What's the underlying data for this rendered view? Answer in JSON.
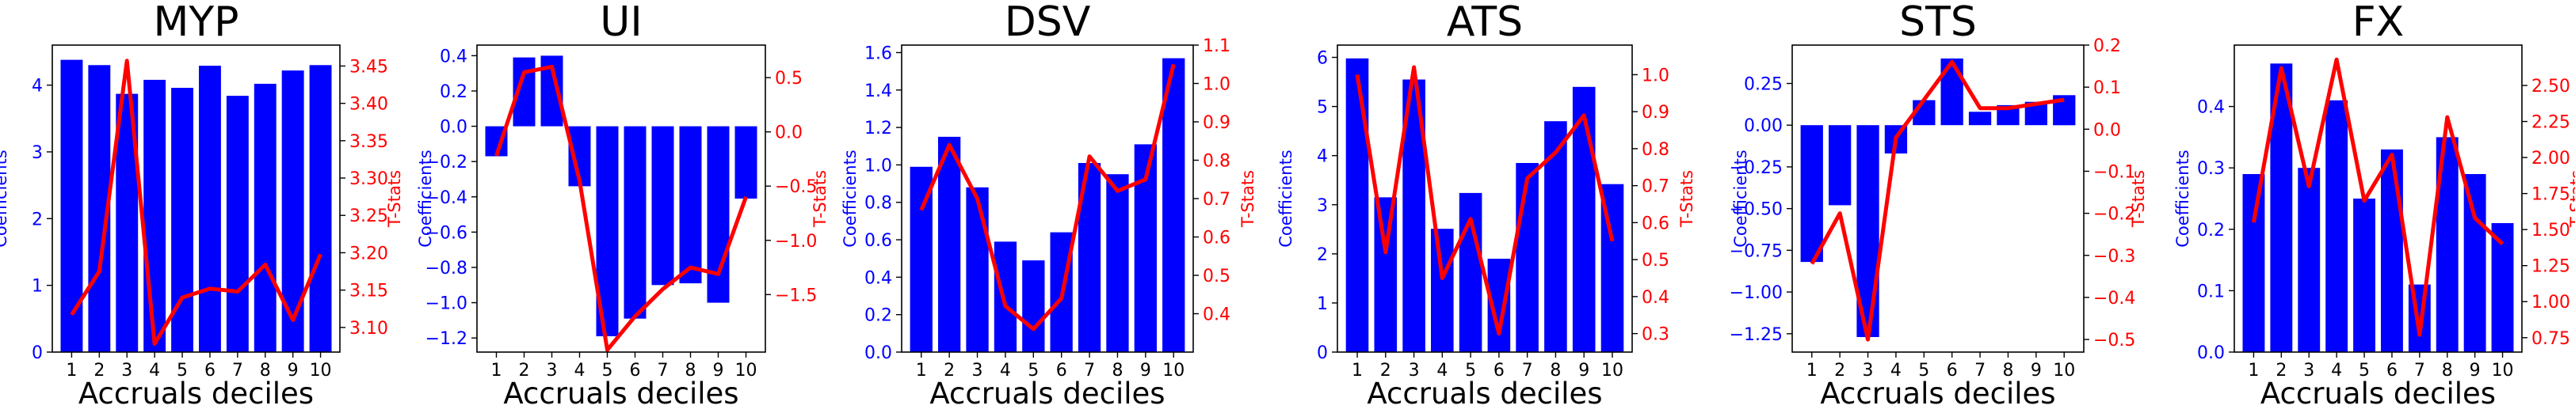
{
  "figure": {
    "background": "#ffffff"
  },
  "style": {
    "bar_color": "#0000ff",
    "line_color": "#ff0000",
    "axis_color": "#000000"
  },
  "chart_data": [
    {
      "type": "bar",
      "title": "MYP",
      "xlabel": "Accruals deciles",
      "ylabel": "Coefficients",
      "y2label": "T-Stats",
      "categories": [
        "1",
        "2",
        "3",
        "4",
        "5",
        "6",
        "7",
        "8",
        "9",
        "10"
      ],
      "ylim": [
        0,
        4.6
      ],
      "y2lim": [
        3.067,
        3.478
      ],
      "yticks": [
        0,
        1,
        2,
        3,
        4
      ],
      "yticklabels": [
        "0",
        "1",
        "2",
        "3",
        "4"
      ],
      "y2ticks": [
        3.1,
        3.15,
        3.2,
        3.25,
        3.3,
        3.35,
        3.4,
        3.45
      ],
      "y2ticklabels": [
        "3.10",
        "3.15",
        "3.20",
        "3.25",
        "3.30",
        "3.35",
        "3.40",
        "3.45"
      ],
      "series": [
        {
          "kind": "bar",
          "axis": "left",
          "values": [
            4.38,
            4.3,
            3.87,
            4.08,
            3.96,
            4.29,
            3.84,
            4.02,
            4.22,
            4.3
          ]
        },
        {
          "kind": "line",
          "axis": "right",
          "values": [
            3.117,
            3.175,
            3.457,
            3.078,
            3.14,
            3.152,
            3.148,
            3.184,
            3.11,
            3.198
          ]
        }
      ]
    },
    {
      "type": "bar",
      "title": "UI",
      "xlabel": "Accruals deciles",
      "ylabel": "Coefficients",
      "y2label": "T-Stats",
      "categories": [
        "1",
        "2",
        "3",
        "4",
        "5",
        "6",
        "7",
        "8",
        "9",
        "10"
      ],
      "ylim": [
        -1.28,
        0.46
      ],
      "y2lim": [
        -2.03,
        0.8
      ],
      "yticks": [
        0.4,
        0.2,
        0.0,
        -0.2,
        -0.4,
        -0.6,
        -0.8,
        -1.0,
        -1.2
      ],
      "yticklabels": [
        "0.4",
        "0.2",
        "0.0",
        "−0.2",
        "−0.4",
        "−0.6",
        "−0.8",
        "−1.0",
        "−1.2"
      ],
      "y2ticks": [
        0.5,
        0.0,
        -0.5,
        -1.0,
        -1.5
      ],
      "y2ticklabels": [
        "0.5",
        "0.0",
        "−0.5",
        "−1.0",
        "−1.5"
      ],
      "series": [
        {
          "kind": "bar",
          "axis": "left",
          "values": [
            -0.17,
            0.39,
            0.4,
            -0.34,
            -1.19,
            -1.09,
            -0.9,
            -0.89,
            -1.0,
            -0.41
          ]
        },
        {
          "kind": "line",
          "axis": "right",
          "values": [
            -0.22,
            0.55,
            0.6,
            -0.45,
            -2.01,
            -1.7,
            -1.45,
            -1.25,
            -1.31,
            -0.6
          ]
        }
      ]
    },
    {
      "type": "bar",
      "title": "DSV",
      "xlabel": "Accruals deciles",
      "ylabel": "Coefficients",
      "y2label": "T-Stats",
      "categories": [
        "1",
        "2",
        "3",
        "4",
        "5",
        "6",
        "7",
        "8",
        "9",
        "10"
      ],
      "ylim": [
        0,
        1.64
      ],
      "y2lim": [
        0.3,
        1.1
      ],
      "yticks": [
        0.0,
        0.2,
        0.4,
        0.6,
        0.8,
        1.0,
        1.2,
        1.4,
        1.6
      ],
      "yticklabels": [
        "0.0",
        "0.2",
        "0.4",
        "0.6",
        "0.8",
        "1.0",
        "1.2",
        "1.4",
        "1.6"
      ],
      "y2ticks": [
        0.4,
        0.5,
        0.6,
        0.7,
        0.8,
        0.9,
        1.0,
        1.1
      ],
      "y2ticklabels": [
        "0.4",
        "0.5",
        "0.6",
        "0.7",
        "0.8",
        "0.9",
        "1.0",
        "1.1"
      ],
      "series": [
        {
          "kind": "bar",
          "axis": "left",
          "values": [
            0.99,
            1.15,
            0.88,
            0.59,
            0.49,
            0.64,
            1.01,
            0.95,
            1.11,
            1.57
          ]
        },
        {
          "kind": "line",
          "axis": "right",
          "values": [
            0.67,
            0.84,
            0.7,
            0.42,
            0.36,
            0.44,
            0.81,
            0.72,
            0.75,
            1.05
          ]
        }
      ]
    },
    {
      "type": "bar",
      "title": "ATS",
      "xlabel": "Accruals deciles",
      "ylabel": "Coefficients",
      "y2label": "T-Stats",
      "categories": [
        "1",
        "2",
        "3",
        "4",
        "5",
        "6",
        "7",
        "8",
        "9",
        "10"
      ],
      "ylim": [
        0,
        6.25
      ],
      "y2lim": [
        0.25,
        1.08
      ],
      "yticks": [
        0,
        1,
        2,
        3,
        4,
        5,
        6
      ],
      "yticklabels": [
        "0",
        "1",
        "2",
        "3",
        "4",
        "5",
        "6"
      ],
      "y2ticks": [
        0.3,
        0.4,
        0.5,
        0.6,
        0.7,
        0.8,
        0.9,
        1.0
      ],
      "y2ticklabels": [
        "0.3",
        "0.4",
        "0.5",
        "0.6",
        "0.7",
        "0.8",
        "0.9",
        "1.0"
      ],
      "series": [
        {
          "kind": "bar",
          "axis": "left",
          "values": [
            5.98,
            3.15,
            5.55,
            2.51,
            3.24,
            1.9,
            3.85,
            4.7,
            5.4,
            3.42
          ]
        },
        {
          "kind": "line",
          "axis": "right",
          "values": [
            1.0,
            0.52,
            1.02,
            0.45,
            0.61,
            0.3,
            0.72,
            0.79,
            0.89,
            0.55
          ]
        }
      ]
    },
    {
      "type": "bar",
      "title": "STS",
      "xlabel": "Accruals deciles",
      "ylabel": "Coefficients",
      "y2label": "T-Stats",
      "categories": [
        "1",
        "2",
        "3",
        "4",
        "5",
        "6",
        "7",
        "8",
        "9",
        "10"
      ],
      "ylim": [
        -1.36,
        0.48
      ],
      "y2lim": [
        -0.53,
        0.2
      ],
      "yticks": [
        0.25,
        0.0,
        -0.25,
        -0.5,
        -0.75,
        -1.0,
        -1.25
      ],
      "yticklabels": [
        "0.25",
        "0.00",
        "−0.25",
        "−0.50",
        "−0.75",
        "−1.00",
        "−1.25"
      ],
      "y2ticks": [
        0.2,
        0.1,
        0.0,
        -0.1,
        -0.2,
        -0.3,
        -0.4,
        -0.5
      ],
      "y2ticklabels": [
        "0.2",
        "0.1",
        "0.0",
        "−0.1",
        "−0.2",
        "−0.3",
        "−0.4",
        "−0.5"
      ],
      "series": [
        {
          "kind": "bar",
          "axis": "left",
          "values": [
            -0.82,
            -0.48,
            -1.27,
            -0.17,
            0.15,
            0.4,
            0.08,
            0.12,
            0.14,
            0.18
          ]
        },
        {
          "kind": "line",
          "axis": "right",
          "values": [
            -0.32,
            -0.2,
            -0.5,
            -0.02,
            0.07,
            0.16,
            0.05,
            0.05,
            0.06,
            0.07
          ]
        }
      ]
    },
    {
      "type": "bar",
      "title": "FX",
      "xlabel": "Accruals deciles",
      "ylabel": "Coefficients",
      "y2label": "T-Stats",
      "categories": [
        "1",
        "2",
        "3",
        "4",
        "5",
        "6",
        "7",
        "8",
        "9",
        "10"
      ],
      "ylim": [
        0,
        0.5
      ],
      "y2lim": [
        0.65,
        2.78
      ],
      "yticks": [
        0.0,
        0.1,
        0.2,
        0.3,
        0.4
      ],
      "yticklabels": [
        "0.0",
        "0.1",
        "0.2",
        "0.3",
        "0.4"
      ],
      "y2ticks": [
        0.75,
        1.0,
        1.25,
        1.5,
        1.75,
        2.0,
        2.25,
        2.5
      ],
      "y2ticklabels": [
        "0.75",
        "1.00",
        "1.25",
        "1.50",
        "1.75",
        "2.00",
        "2.25",
        "2.50"
      ],
      "series": [
        {
          "kind": "bar",
          "axis": "left",
          "values": [
            0.29,
            0.47,
            0.3,
            0.41,
            0.25,
            0.33,
            0.11,
            0.35,
            0.29,
            0.21
          ]
        },
        {
          "kind": "line",
          "axis": "right",
          "values": [
            1.55,
            2.62,
            1.8,
            2.68,
            1.7,
            2.02,
            0.77,
            2.28,
            1.58,
            1.4
          ]
        }
      ]
    }
  ]
}
